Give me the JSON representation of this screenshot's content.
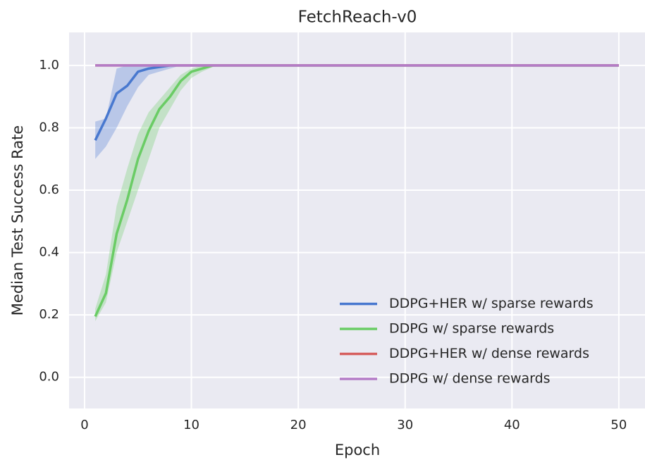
{
  "chart_data": {
    "type": "line",
    "title": "FetchReach-v0",
    "xlabel": "Epoch",
    "ylabel": "Median Test Success Rate",
    "x": [
      1,
      2,
      3,
      4,
      5,
      6,
      7,
      8,
      9,
      10,
      11,
      12,
      13,
      50
    ],
    "series": [
      {
        "name": "DDPG+HER w/ sparse rewards",
        "color": "#4878cf",
        "values": [
          0.76,
          0.83,
          0.91,
          0.935,
          0.98,
          0.99,
          0.995,
          1,
          1,
          1,
          1,
          1,
          1,
          1
        ],
        "lower": [
          0.7,
          0.74,
          0.8,
          0.87,
          0.93,
          0.97,
          0.98,
          0.99,
          1,
          1,
          1,
          1,
          1,
          1
        ],
        "upper": [
          0.82,
          0.83,
          0.99,
          1,
          1,
          1,
          1,
          1,
          1,
          1,
          1,
          1,
          1,
          1
        ]
      },
      {
        "name": "DDPG w/ sparse rewards",
        "color": "#6acc65",
        "values": [
          0.195,
          0.27,
          0.46,
          0.57,
          0.7,
          0.79,
          0.86,
          0.9,
          0.95,
          0.98,
          0.99,
          1,
          1,
          1
        ],
        "lower": [
          0.18,
          0.24,
          0.4,
          0.5,
          0.6,
          0.7,
          0.8,
          0.86,
          0.92,
          0.96,
          0.98,
          0.995,
          1,
          1
        ],
        "upper": [
          0.22,
          0.33,
          0.55,
          0.67,
          0.78,
          0.85,
          0.89,
          0.93,
          0.97,
          0.99,
          1,
          1,
          1,
          1
        ]
      },
      {
        "name": "DDPG+HER w/ dense rewards",
        "color": "#d65f5f",
        "values": [
          1,
          1,
          1,
          1,
          1,
          1,
          1,
          1,
          1,
          1,
          1,
          1,
          1,
          1
        ]
      },
      {
        "name": "DDPG w/ dense rewards",
        "color": "#b47cc7",
        "values": [
          1,
          1,
          1,
          1,
          1,
          1,
          1,
          1,
          1,
          1,
          1,
          1,
          1,
          1
        ]
      }
    ],
    "xlim": [
      -1.45,
      52.45
    ],
    "ylim": [
      -0.1,
      1.106
    ],
    "xticks": [
      0,
      10,
      20,
      30,
      40,
      50
    ],
    "yticks": [
      {
        "value": 0,
        "label": "0.0"
      },
      0.2,
      0.4,
      0.6,
      0.8,
      {
        "value": 1,
        "label": "1.0"
      }
    ],
    "grid": true,
    "legend": "lower right"
  }
}
